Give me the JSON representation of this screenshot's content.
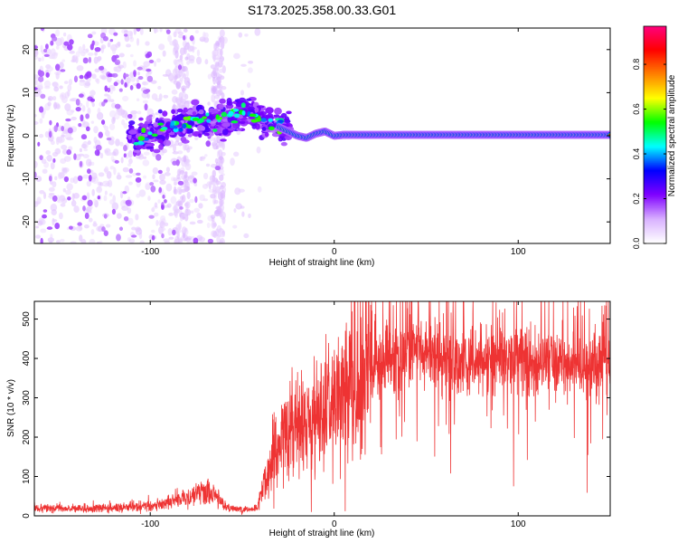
{
  "title": "S173.2025.358.00.33.G01",
  "chart_data": [
    {
      "type": "heatmap",
      "xlabel": "Height of straight line (km)",
      "ylabel": "Frequency (Hz)",
      "xlim": [
        -163,
        150
      ],
      "ylim": [
        -25,
        25
      ],
      "xticks": [
        -100,
        0,
        100
      ],
      "yticks": [
        -20,
        -10,
        0,
        10,
        20
      ],
      "colorbar": {
        "label": "Normalized spectral amplitude",
        "range": [
          0,
          0.97
        ],
        "ticks": [
          "0.0",
          "0.2",
          "0.4",
          "0.6",
          "0.8"
        ],
        "tick_values": [
          0,
          0.2,
          0.4,
          0.6,
          0.8
        ],
        "colors": [
          "#ffffff",
          "#d8b0ff",
          "#8000ff",
          "#0000ff",
          "#00ffff",
          "#00ff00",
          "#ffff00",
          "#ff8000",
          "#ff0000",
          "#ff0080"
        ]
      },
      "ridge": {
        "x": [
          -110,
          -95,
          -85,
          -75,
          -65,
          -55,
          -45,
          -38,
          -30,
          -25,
          -20,
          -15,
          -10,
          -5,
          0,
          5,
          50,
          100,
          148
        ],
        "y": [
          -0.5,
          1,
          2.5,
          4,
          3,
          4.5,
          5.5,
          3,
          2,
          1,
          0,
          -0.5,
          0.5,
          1,
          0,
          0.2,
          0.2,
          0.2,
          0.2
        ]
      }
    },
    {
      "type": "line",
      "xlabel": "Height of straight line (km)",
      "ylabel": "SNR (10 * v/v)",
      "xlim": [
        -163,
        150
      ],
      "ylim": [
        0,
        545
      ],
      "xticks": [
        -100,
        0,
        100
      ],
      "yticks": [
        0,
        100,
        200,
        300,
        400,
        500
      ],
      "color": "#ee3333",
      "envelope": {
        "x": [
          -163,
          -120,
          -100,
          -90,
          -80,
          -72,
          -65,
          -58,
          -50,
          -42,
          -35,
          -30,
          -25,
          -20,
          -15,
          -10,
          -5,
          0,
          5,
          10,
          15,
          20,
          25,
          30,
          40,
          50,
          60,
          70,
          80,
          90,
          100,
          110,
          120,
          130,
          140,
          150
        ],
        "y": [
          18,
          20,
          25,
          35,
          45,
          60,
          50,
          20,
          15,
          18,
          120,
          180,
          200,
          210,
          230,
          240,
          250,
          290,
          310,
          330,
          355,
          370,
          385,
          400,
          410,
          410,
          400,
          390,
          395,
          400,
          395,
          390,
          390,
          385,
          380,
          380
        ]
      }
    }
  ]
}
